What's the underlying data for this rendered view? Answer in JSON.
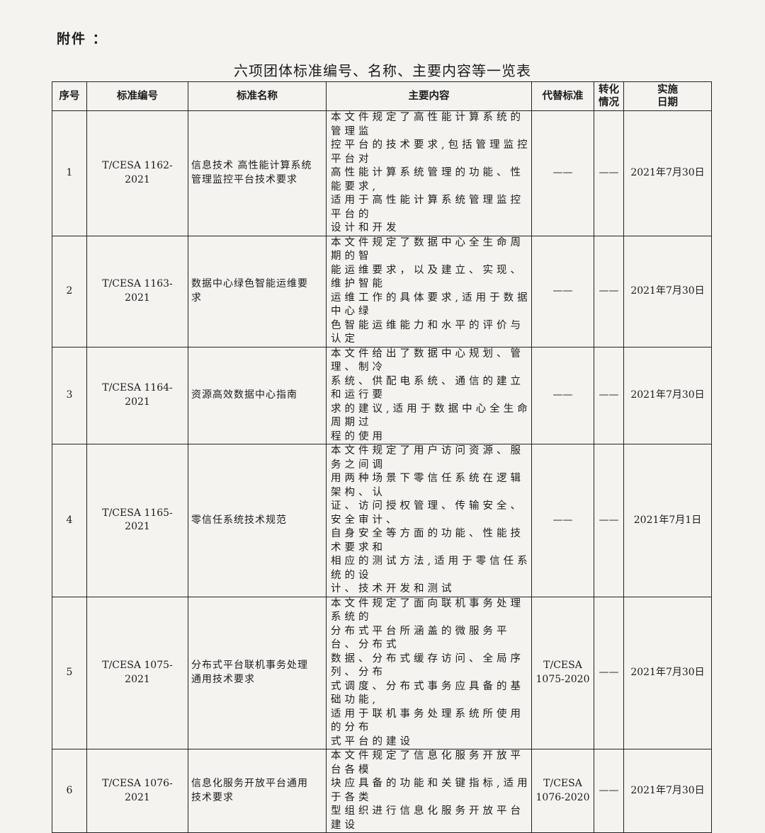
{
  "attachment_label": "附件 ：",
  "title": "六项团体标准编号、名称、主要内容等一览表",
  "headers": [
    "序号",
    "标准编号",
    "标准名称",
    "主要内容",
    "代替标准",
    "转化\n情况",
    "实施\n日期"
  ],
  "rows": [
    {
      "no": "1",
      "code": "T/CESA 1162-2021",
      "name": "信息技术 高性能计算系统\n管理监控平台技术要求",
      "content": "本文件规定了高性能计算系统的管理监\n控平台的技术要求,包括管理监控平台对\n高性能计算系统管理的功能、性能要求,\n适用于高性能计算系统管理监控平台的\n设计和开发",
      "replaces": "——",
      "conversion": "——",
      "date": "2021年7月30日"
    },
    {
      "no": "2",
      "code": "T/CESA 1163-2021",
      "name": "数据中心绿色智能运维要\n求",
      "content": "本文件规定了数据中心全生命周期的智\n能运维要求，以及建立、实现、维护智能\n运维工作的具体要求,适用于数据中心绿\n色智能运维能力和水平的评价与认定",
      "replaces": "——",
      "conversion": "——",
      "date": "2021年7月30日"
    },
    {
      "no": "3",
      "code": "T/CESA 1164-2021",
      "name": "资源高效数据中心指南",
      "content": "本文件给出了数据中心规划、管理、制冷\n系统、供配电系统、通信的建立和运行要\n求的建议,适用于数据中心全生命周期过\n程的使用",
      "replaces": "——",
      "conversion": "——",
      "date": "2021年7月30日"
    },
    {
      "no": "4",
      "code": "T/CESA 1165-2021",
      "name": "零信任系统技术规范",
      "content": "本文件规定了用户访问资源、服务之间调\n用两种场景下零信任系统在逻辑架构、认\n证、访问授权管理、传输安全、安全审计、\n自身安全等方面的功能、性能技术要求和\n相应的测试方法,适用于零信任系统的设\n计、技术开发和测试",
      "replaces": "——",
      "conversion": "——",
      "date": "2021年7月1日"
    },
    {
      "no": "5",
      "code": "T/CESA 1075-2021",
      "name": "分布式平台联机事务处理\n通用技术要求",
      "content": "本文件规定了面向联机事务处理系统的\n分布式平台所涵盖的微服务平台、分布式\n数据、分布式缓存访问、全局序列、分布\n式调度、分布式事务应具备的基础功能,\n适用于联机事务处理系统所使用的分布\n式平台的建设",
      "replaces": "T/CESA\n1075-2020",
      "conversion": "——",
      "date": "2021年7月30日"
    },
    {
      "no": "6",
      "code": "T/CESA 1076-2021",
      "name": "信息化服务开放平台通用\n技术要求",
      "content": "本文件规定了信息化服务开放平台各模\n块应具备的功能和关键指标,适用于各类\n型组织进行信息化服务开放平台建设",
      "replaces": "T/CESA\n1076-2020",
      "conversion": "——",
      "date": "2021年7月30日"
    }
  ]
}
